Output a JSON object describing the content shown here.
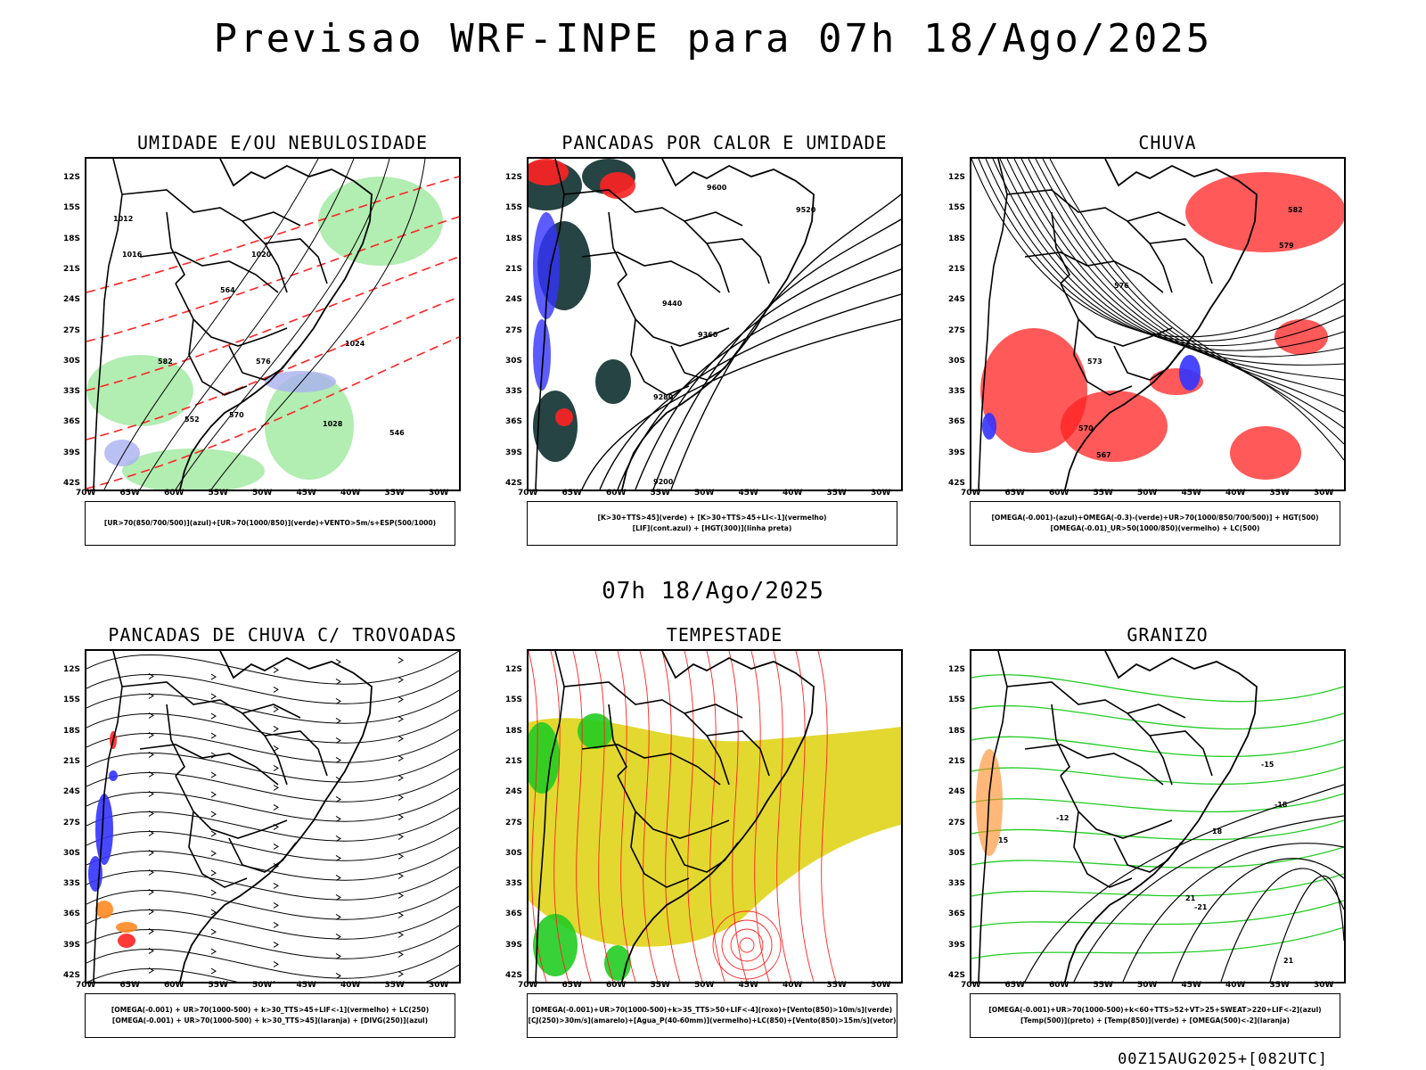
{
  "title": "Previsao WRF-INPE  para 07h 18/Ago/2025",
  "mid_title": "07h 18/Ago/2025",
  "footer": "00Z15AUG2025+[082UTC]",
  "axes": {
    "lat_labels": [
      "12S",
      "15S",
      "18S",
      "21S",
      "24S",
      "27S",
      "30S",
      "33S",
      "36S",
      "39S",
      "42S"
    ],
    "lon_labels": [
      "70W",
      "65W",
      "60W",
      "55W",
      "50W",
      "45W",
      "40W",
      "35W",
      "30W"
    ]
  },
  "colors": {
    "blue": "#3333ff",
    "green": "#22cc22",
    "red": "#ff2222",
    "dark_teal": "#1a3a3a",
    "yellow": "#e3d830",
    "orange": "#ff8822",
    "lavender": "#aab0f0"
  },
  "panels": [
    {
      "id": "umidade",
      "title": "UMIDADE E/OU NEBULOSIDADE",
      "legend": [
        "[UR>70(850/700/500)](azul)+[UR>70(1000/850)](verde)+VENTO>5m/s+ESP(500/1000)"
      ],
      "contour_labels": [
        "1012",
        "1016",
        "1020",
        "1024",
        "1028",
        "564",
        "570",
        "576",
        "582",
        "546",
        "552"
      ]
    },
    {
      "id": "pancadas-calor",
      "title": "PANCADAS POR CALOR E UMIDADE",
      "legend": [
        "[K>30+TTS>45](verde) + [K>30+TTS>45+LI<-1](vermelho)",
        "[LIF](cont.azul) + [HGT(300)](linha preta)"
      ],
      "contour_labels": [
        "9600",
        "9520",
        "9440",
        "9360",
        "9280",
        "9200"
      ]
    },
    {
      "id": "chuva",
      "title": "CHUVA",
      "legend": [
        "[OMEGA(-0.001)-(azul)+OMEGA(-0.3)-(verde)+UR>70(1000/850/700/500)] + HGT(500)",
        "[OMEGA(-0.01)_UR>50(1000/850)(vermelho) + LC(500)"
      ],
      "contour_labels": [
        "582",
        "579",
        "576",
        "573",
        "570",
        "567"
      ]
    },
    {
      "id": "trovoadas",
      "title": "PANCADAS DE CHUVA C/ TROVOADAS",
      "legend": [
        "[OMEGA(-0.001) + UR>70(1000-500) + k>30_TTS>45+LIF<-1](vermelho) + LC(250)",
        "[OMEGA(-0.001) + UR>70(1000-500) + k>30_TTS>45](laranja) + [DIVG(250)](azul)"
      ],
      "contour_labels": []
    },
    {
      "id": "tempestade",
      "title": "TEMPESTADE",
      "legend": [
        "[OMEGA(-0.001)+UR>70(1000-500)+k>35_TTS>50+LIF<-4](roxo)+[Vento(850)>10m/s](verde)",
        "[CJ(250)>30m/s](amarelo)+[Agua_P(40-60mm)](vermelho)+LC(850)+[Vento(850)>15m/s](vetor)"
      ],
      "contour_labels": []
    },
    {
      "id": "granizo",
      "title": "GRANIZO",
      "legend": [
        "[OMEGA(-0.001)+UR>70(1000-500)+k<60+TTS>52+VT>25+SWEAT>220+LIF<-2](azul)",
        "[Temp(500)](preto) + [Temp(850)](verde) + [OMEGA(500)<-2](laranja)"
      ],
      "contour_labels": [
        "-15",
        "-12",
        "-18",
        "-21",
        "15",
        "18",
        "21",
        "21"
      ]
    }
  ]
}
